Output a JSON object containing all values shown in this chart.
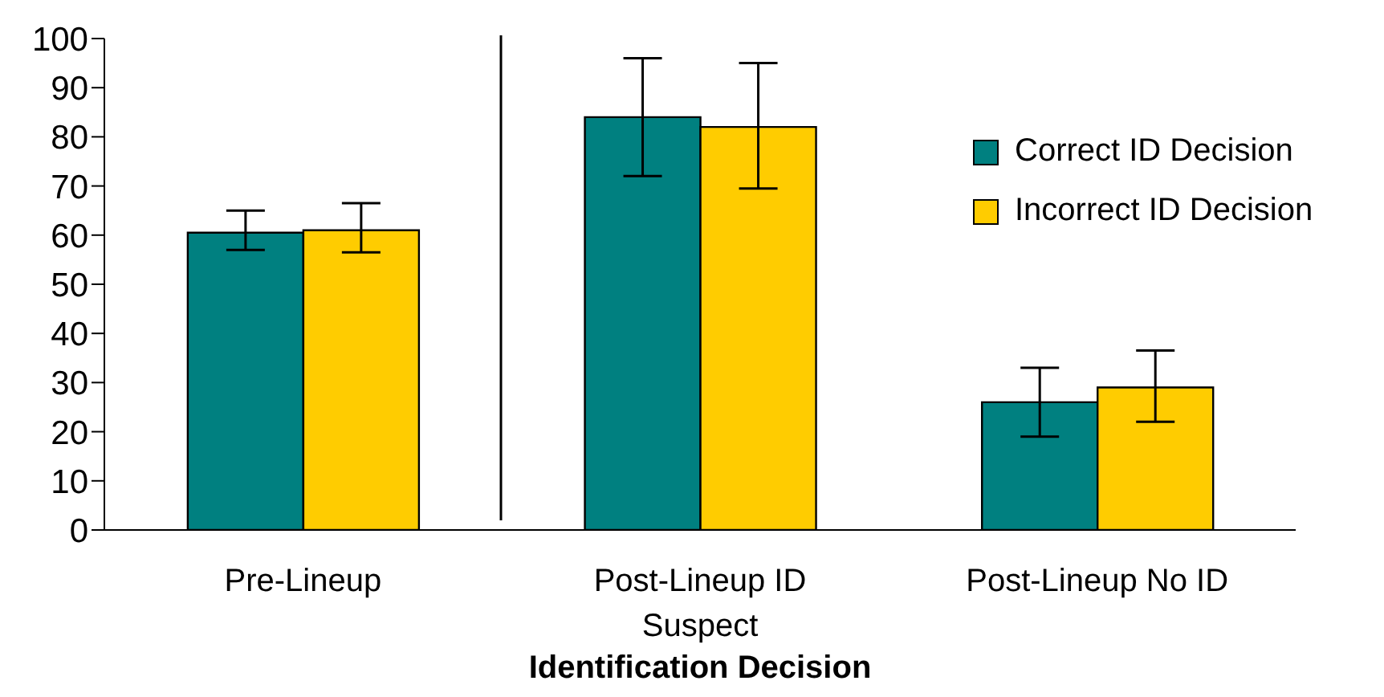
{
  "chart_data": {
    "type": "bar",
    "xlabel": "Identification Decision",
    "categories": [
      "Pre-Lineup",
      "Post-Lineup ID Suspect",
      "Post-Lineup No ID"
    ],
    "series": [
      {
        "name": "Correct ID Decision",
        "color": "#008080",
        "values": [
          60.5,
          84,
          26
        ],
        "errors": [
          [
            57,
            65
          ],
          [
            72,
            96
          ],
          [
            19,
            33
          ]
        ]
      },
      {
        "name": "Incorrect ID Decision",
        "color": "#ffcc00",
        "values": [
          61,
          82,
          29
        ],
        "errors": [
          [
            56.5,
            66.5
          ],
          [
            69.5,
            95
          ],
          [
            22,
            36.5
          ]
        ]
      }
    ],
    "ylim": [
      0,
      100
    ],
    "yticks": [
      0,
      10,
      20,
      30,
      40,
      50,
      60,
      70,
      80,
      90,
      100
    ],
    "legend": "right"
  }
}
